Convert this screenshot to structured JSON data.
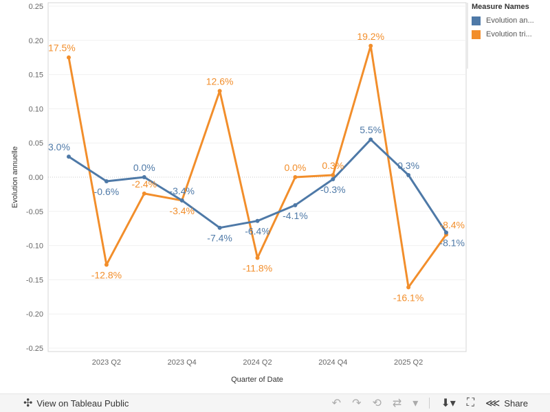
{
  "chart_data": {
    "type": "line",
    "ylabel": "Evolution annuelle",
    "xlabel": "Quarter of Date",
    "ylim": [
      -0.255,
      0.255
    ],
    "yticks": [
      0.25,
      0.2,
      0.15,
      0.1,
      0.05,
      0.0,
      -0.05,
      -0.1,
      -0.15,
      -0.2,
      -0.25
    ],
    "ytick_labels": [
      "0.25",
      "0.20",
      "0.15",
      "0.10",
      "0.05",
      "0.00",
      "-0.05",
      "-0.10",
      "-0.15",
      "-0.20",
      "-0.25"
    ],
    "x": [
      "2023 Q1",
      "2023 Q2",
      "2023 Q3",
      "2023 Q4",
      "2024 Q1",
      "2024 Q2",
      "2024 Q3",
      "2024 Q4",
      "2025 Q1",
      "2025 Q2",
      "2025 Q3"
    ],
    "xticks": [
      {
        "index": 1,
        "label": "2023 Q2"
      },
      {
        "index": 3,
        "label": "2023 Q4"
      },
      {
        "index": 5,
        "label": "2024 Q2"
      },
      {
        "index": 7,
        "label": "2024 Q4"
      },
      {
        "index": 9,
        "label": "2025 Q2"
      }
    ],
    "zero_line": true,
    "series": [
      {
        "name": "Evolution annuelle",
        "legend_label": "Evolution an...",
        "color": "#4e79a7",
        "values": [
          0.03,
          -0.006,
          0.0,
          -0.034,
          -0.074,
          -0.064,
          -0.041,
          -0.003,
          0.055,
          0.003,
          -0.081
        ],
        "labels": [
          "3.0%",
          "-0.6%",
          "0.0%",
          "-3.4%",
          "-7.4%",
          "-6.4%",
          "-4.1%",
          "-0.3%",
          "5.5%",
          "0.3%",
          "-8.1%"
        ],
        "label_pos": [
          "above",
          "below",
          "above",
          "above",
          "below",
          "below",
          "below",
          "below",
          "above",
          "above",
          "below"
        ]
      },
      {
        "name": "Evolution trimestrielle",
        "legend_label": "Evolution tri...",
        "color": "#f28e2b",
        "values": [
          0.175,
          -0.128,
          -0.024,
          -0.034,
          0.126,
          -0.118,
          0.0,
          0.003,
          0.192,
          -0.161,
          -0.084
        ],
        "labels": [
          "17.5%",
          "-12.8%",
          "-2.4%",
          "-3.4%",
          "12.6%",
          "-11.8%",
          "0.0%",
          "0.3%",
          "19.2%",
          "-16.1%",
          "-8.4%"
        ],
        "label_pos": [
          "above",
          "below",
          "above",
          "below",
          "above",
          "below",
          "above",
          "above",
          "above",
          "below",
          "above"
        ]
      }
    ]
  },
  "legend": {
    "title": "Measure Names",
    "items": [
      {
        "label": "Evolution an...",
        "color": "#4e79a7"
      },
      {
        "label": "Evolution tri...",
        "color": "#f28e2b"
      }
    ]
  },
  "toolbar": {
    "view_label": "View on Tableau Public",
    "share_label": "Share"
  }
}
